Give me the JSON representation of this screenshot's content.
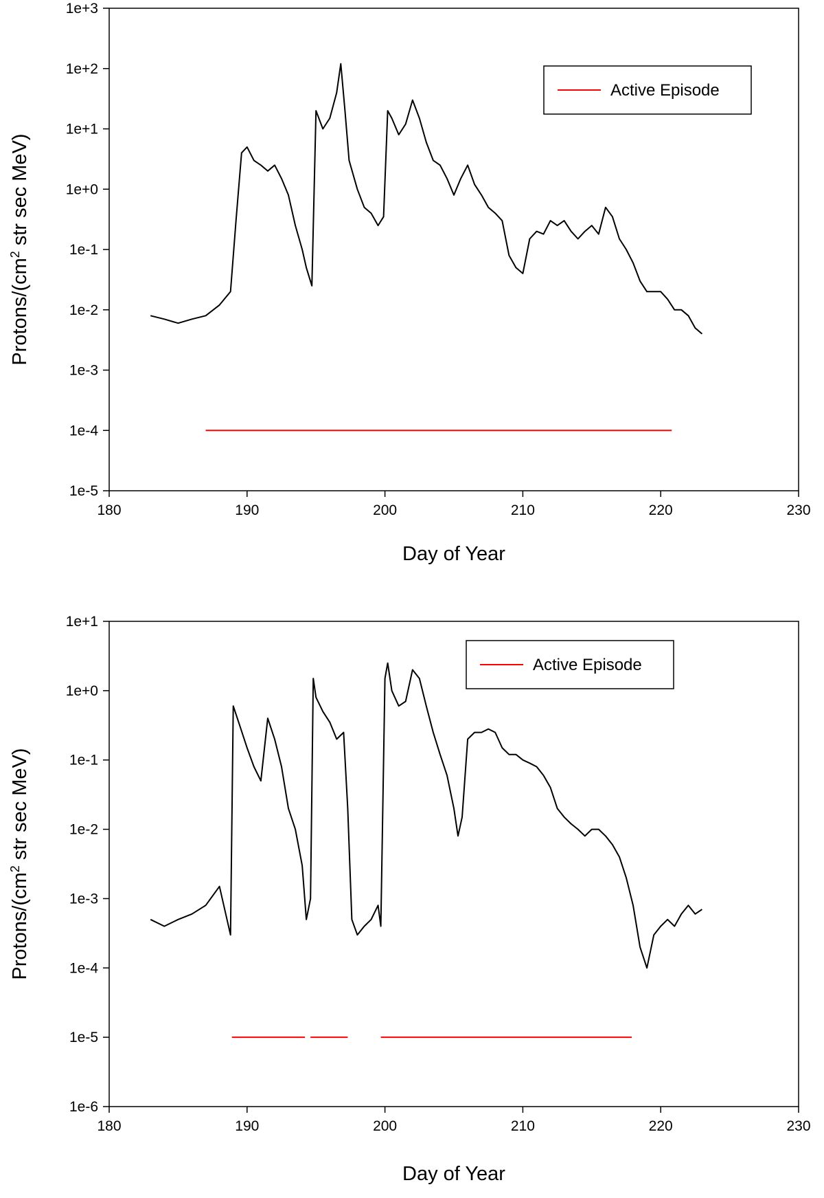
{
  "chart_data": [
    {
      "type": "line",
      "title": "",
      "xlabel": "Day of Year",
      "ylabel_main": "Protons/(cm",
      "ylabel_sup": "2",
      "ylabel_rest": " str sec MeV)",
      "xlim": [
        180,
        230
      ],
      "x_ticks": [
        180,
        190,
        200,
        210,
        220,
        230
      ],
      "x_tick_labels": [
        "180",
        "190",
        "200",
        "210",
        "220",
        "230"
      ],
      "y_scale": "log",
      "ylim_exp": [
        -5,
        3
      ],
      "y_tick_labels": [
        "1e-5",
        "1e-4",
        "1e-3",
        "1e-2",
        "1e-1",
        "1e+0",
        "1e+1",
        "1e+2",
        "1e+3"
      ],
      "legend": {
        "label": "Active Episode",
        "position": "top-right"
      },
      "grid": false,
      "series": [
        {
          "color": "#000000",
          "x": [
            183.0,
            184.0,
            185.0,
            186.0,
            187.0,
            188.0,
            188.8,
            189.2,
            189.6,
            190.0,
            190.5,
            191.0,
            191.5,
            192.0,
            192.5,
            193.0,
            193.5,
            194.0,
            194.3,
            194.7,
            195.0,
            195.5,
            196.0,
            196.5,
            196.8,
            197.1,
            197.4,
            198.0,
            198.5,
            199.0,
            199.5,
            199.9,
            200.2,
            200.5,
            201.0,
            201.5,
            202.0,
            202.5,
            203.0,
            203.5,
            204.0,
            204.5,
            205.0,
            205.5,
            206.0,
            206.5,
            207.0,
            207.5,
            208.0,
            208.5,
            209.0,
            209.5,
            210.0,
            210.5,
            211.0,
            211.5,
            212.0,
            212.5,
            213.0,
            213.5,
            214.0,
            214.5,
            215.0,
            215.5,
            216.0,
            216.5,
            217.0,
            217.5,
            218.0,
            218.5,
            219.0,
            219.5,
            220.0,
            220.5,
            221.0,
            221.5,
            222.0,
            222.5,
            223.0
          ],
          "y": [
            0.008,
            0.007,
            0.006,
            0.007,
            0.008,
            0.012,
            0.02,
            0.3,
            4.0,
            5.0,
            3.0,
            2.5,
            2.0,
            2.5,
            1.5,
            0.8,
            0.25,
            0.1,
            0.05,
            0.025,
            20.0,
            10.0,
            15.0,
            40.0,
            120.0,
            20.0,
            3.0,
            1.0,
            0.5,
            0.4,
            0.25,
            0.35,
            20.0,
            15.0,
            8.0,
            12.0,
            30.0,
            15.0,
            6.0,
            3.0,
            2.5,
            1.5,
            0.8,
            1.5,
            2.5,
            1.2,
            0.8,
            0.5,
            0.4,
            0.3,
            0.08,
            0.05,
            0.04,
            0.15,
            0.2,
            0.18,
            0.3,
            0.25,
            0.3,
            0.2,
            0.15,
            0.2,
            0.25,
            0.18,
            0.5,
            0.35,
            0.15,
            0.1,
            0.06,
            0.03,
            0.02,
            0.02,
            0.02,
            0.015,
            0.01,
            0.01,
            0.008,
            0.005,
            0.004
          ]
        }
      ],
      "episodes": [
        {
          "color": "#ff0000",
          "x_start": 187.0,
          "x_end": 220.8,
          "y": 0.0001
        }
      ]
    },
    {
      "type": "line",
      "title": "",
      "xlabel": "Day of Year",
      "ylabel_main": "Protons/(cm",
      "ylabel_sup": "2",
      "ylabel_rest": " str sec MeV)",
      "xlim": [
        180,
        230
      ],
      "x_ticks": [
        180,
        190,
        200,
        210,
        220,
        230
      ],
      "x_tick_labels": [
        "180",
        "190",
        "200",
        "210",
        "220",
        "230"
      ],
      "y_scale": "log",
      "ylim_exp": [
        -6,
        1
      ],
      "y_tick_labels": [
        "1e-6",
        "1e-5",
        "1e-4",
        "1e-3",
        "1e-2",
        "1e-1",
        "1e+0",
        "1e+1"
      ],
      "legend": {
        "label": "Active Episode",
        "position": "top-right"
      },
      "grid": false,
      "series": [
        {
          "color": "#000000",
          "x": [
            183.0,
            184.0,
            185.0,
            186.0,
            187.0,
            188.0,
            188.8,
            189.0,
            189.5,
            190.0,
            190.5,
            191.0,
            191.5,
            192.0,
            192.5,
            193.0,
            193.5,
            194.0,
            194.3,
            194.6,
            194.8,
            195.0,
            195.5,
            196.0,
            196.5,
            197.0,
            197.3,
            197.6,
            198.0,
            198.5,
            199.0,
            199.5,
            199.7,
            200.0,
            200.2,
            200.5,
            201.0,
            201.5,
            202.0,
            202.5,
            203.0,
            203.5,
            204.0,
            204.5,
            205.0,
            205.3,
            205.6,
            206.0,
            206.5,
            207.0,
            207.5,
            208.0,
            208.5,
            209.0,
            209.5,
            210.0,
            210.5,
            211.0,
            211.5,
            212.0,
            212.5,
            213.0,
            213.5,
            214.0,
            214.5,
            215.0,
            215.5,
            216.0,
            216.5,
            217.0,
            217.5,
            218.0,
            218.5,
            219.0,
            219.5,
            220.0,
            220.5,
            221.0,
            221.5,
            222.0,
            222.5,
            223.0
          ],
          "y": [
            0.0005,
            0.0004,
            0.0005,
            0.0006,
            0.0008,
            0.0015,
            0.0003,
            0.6,
            0.3,
            0.15,
            0.08,
            0.05,
            0.4,
            0.2,
            0.08,
            0.02,
            0.01,
            0.003,
            0.0005,
            0.001,
            1.5,
            0.8,
            0.5,
            0.35,
            0.2,
            0.25,
            0.02,
            0.0005,
            0.0003,
            0.0004,
            0.0005,
            0.0008,
            0.0004,
            1.5,
            2.5,
            1.0,
            0.6,
            0.7,
            2.0,
            1.5,
            0.6,
            0.25,
            0.12,
            0.06,
            0.02,
            0.008,
            0.015,
            0.2,
            0.25,
            0.25,
            0.28,
            0.25,
            0.15,
            0.12,
            0.12,
            0.1,
            0.09,
            0.08,
            0.06,
            0.04,
            0.02,
            0.015,
            0.012,
            0.01,
            0.008,
            0.01,
            0.01,
            0.008,
            0.006,
            0.004,
            0.002,
            0.0008,
            0.0002,
            0.0001,
            0.0003,
            0.0004,
            0.0005,
            0.0004,
            0.0006,
            0.0008,
            0.0006,
            0.0007
          ]
        }
      ],
      "episodes": [
        {
          "color": "#ff0000",
          "x_start": 188.9,
          "x_end": 194.2,
          "y": 1e-05
        },
        {
          "color": "#ff0000",
          "x_start": 194.6,
          "x_end": 197.3,
          "y": 1e-05
        },
        {
          "color": "#ff0000",
          "x_start": 199.7,
          "x_end": 217.9,
          "y": 1e-05
        }
      ]
    }
  ]
}
